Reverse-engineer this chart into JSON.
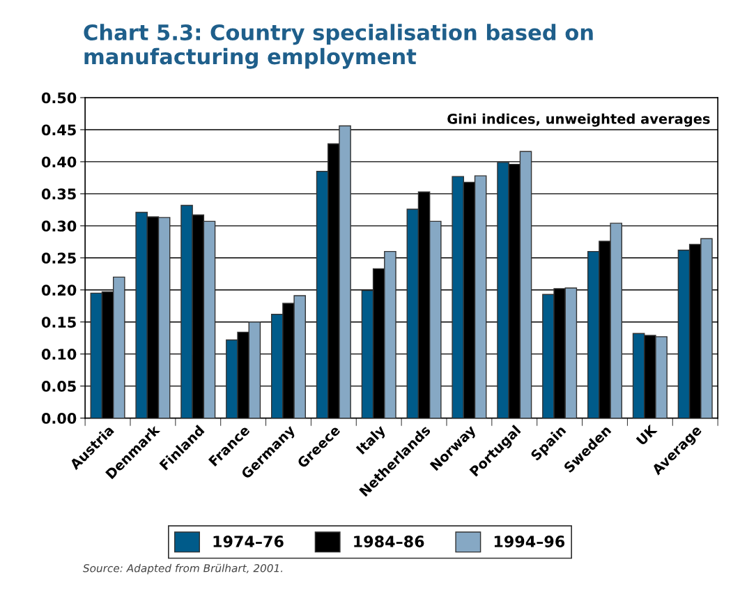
{
  "chart_data": {
    "type": "bar",
    "title": "Chart 5.3: Country specialisation based on manufacturing employment",
    "subtitle": "Gini indices, unweighted averages",
    "categories": [
      "Austria",
      "Denmark",
      "Finland",
      "France",
      "Germany",
      "Greece",
      "Italy",
      "Netherlands",
      "Norway",
      "Portugal",
      "Spain",
      "Sweden",
      "UK",
      "Average"
    ],
    "series": [
      {
        "name": "1974–76",
        "color": "#005b8a",
        "values": [
          0.195,
          0.321,
          0.332,
          0.122,
          0.162,
          0.385,
          0.199,
          0.326,
          0.377,
          0.399,
          0.193,
          0.26,
          0.132,
          0.262
        ]
      },
      {
        "name": "1984–86",
        "color": "#000000",
        "values": [
          0.197,
          0.314,
          0.317,
          0.134,
          0.179,
          0.428,
          0.233,
          0.353,
          0.368,
          0.396,
          0.202,
          0.276,
          0.129,
          0.271
        ]
      },
      {
        "name": "1994–96",
        "color": "#86a8c4",
        "values": [
          0.22,
          0.313,
          0.307,
          0.15,
          0.191,
          0.456,
          0.26,
          0.307,
          0.378,
          0.416,
          0.203,
          0.304,
          0.127,
          0.28
        ]
      }
    ],
    "ylim": [
      0,
      0.5
    ],
    "yticks": [
      {
        "value": 0,
        "label": "0.00"
      },
      {
        "value": 0.05,
        "label": "0.05"
      },
      {
        "value": 0.1,
        "label": "0.10"
      },
      {
        "value": 0.15,
        "label": "0.15"
      },
      {
        "value": 0.2,
        "label": "0.20"
      },
      {
        "value": 0.25,
        "label": "0.25"
      },
      {
        "value": 0.3,
        "label": "0.30"
      },
      {
        "value": 0.35,
        "label": "0.35"
      },
      {
        "value": 0.4,
        "label": "0.40"
      },
      {
        "value": 0.45,
        "label": "0.45"
      },
      {
        "value": 0.5,
        "label": "0.50"
      }
    ],
    "grid": "y",
    "legend": "bottom",
    "annotations": [
      "Source: Adapted from Brülhart, 2001."
    ]
  }
}
